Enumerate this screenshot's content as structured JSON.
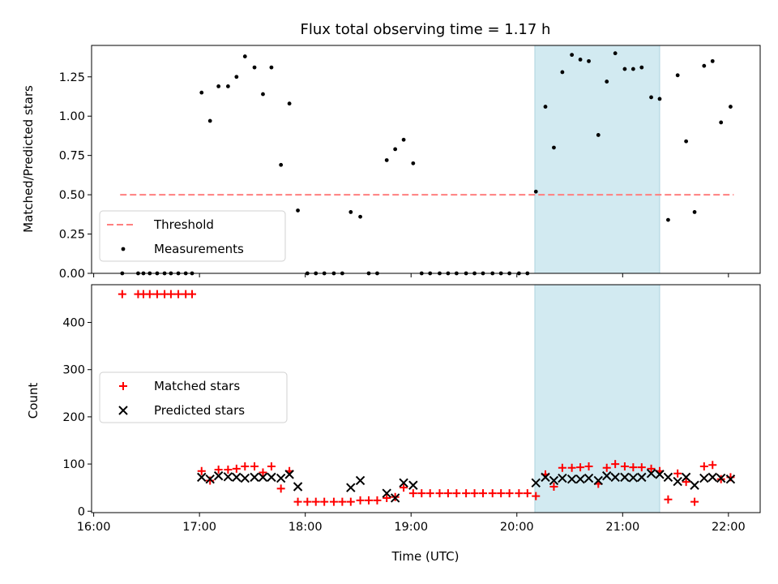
{
  "chart_data": [
    {
      "type": "scatter",
      "title": "Flux total observing time = 1.17 h",
      "xlabel": "",
      "ylabel": "Matched/Predicted stars",
      "xlim": [
        15.98,
        22.3
      ],
      "ylim": [
        0,
        1.45
      ],
      "yticks": [
        0.0,
        0.25,
        0.5,
        0.75,
        1.0,
        1.25
      ],
      "ytick_labels": [
        "0.00",
        "0.25",
        "0.50",
        "0.75",
        "1.00",
        "1.25"
      ],
      "highlight_span": {
        "x_start": 20.17,
        "x_end": 21.35,
        "color": "#add8e6"
      },
      "threshold": {
        "name": "Threshold",
        "y": 0.5,
        "x_start": 16.25,
        "x_end": 22.05,
        "color": "#ff7f7f"
      },
      "legend": [
        "Threshold",
        "Measurements"
      ],
      "legend_location": "lower-left",
      "series": [
        {
          "name": "Measurements",
          "color": "#000000",
          "marker": "dot",
          "points": [
            [
              16.27,
              0.0
            ],
            [
              16.42,
              0.0
            ],
            [
              16.47,
              0.0
            ],
            [
              16.53,
              0.0
            ],
            [
              16.6,
              0.0
            ],
            [
              16.67,
              0.0
            ],
            [
              16.73,
              0.0
            ],
            [
              16.8,
              0.0
            ],
            [
              16.87,
              0.0
            ],
            [
              16.93,
              0.0
            ],
            [
              17.02,
              1.15
            ],
            [
              17.1,
              0.97
            ],
            [
              17.18,
              1.19
            ],
            [
              17.27,
              1.19
            ],
            [
              17.35,
              1.25
            ],
            [
              17.43,
              1.38
            ],
            [
              17.52,
              1.31
            ],
            [
              17.6,
              1.14
            ],
            [
              17.68,
              1.31
            ],
            [
              17.77,
              0.69
            ],
            [
              17.85,
              1.08
            ],
            [
              17.93,
              0.4
            ],
            [
              18.02,
              0.0
            ],
            [
              18.1,
              0.0
            ],
            [
              18.18,
              0.0
            ],
            [
              18.27,
              0.0
            ],
            [
              18.35,
              0.0
            ],
            [
              18.43,
              0.39
            ],
            [
              18.52,
              0.36
            ],
            [
              18.6,
              0.0
            ],
            [
              18.68,
              0.0
            ],
            [
              18.77,
              0.72
            ],
            [
              18.85,
              0.79
            ],
            [
              18.93,
              0.85
            ],
            [
              19.02,
              0.7
            ],
            [
              19.1,
              0.0
            ],
            [
              19.18,
              0.0
            ],
            [
              19.27,
              0.0
            ],
            [
              19.35,
              0.0
            ],
            [
              19.43,
              0.0
            ],
            [
              19.52,
              0.0
            ],
            [
              19.6,
              0.0
            ],
            [
              19.68,
              0.0
            ],
            [
              19.77,
              0.0
            ],
            [
              19.85,
              0.0
            ],
            [
              19.93,
              0.0
            ],
            [
              20.02,
              0.0
            ],
            [
              20.1,
              0.0
            ],
            [
              20.18,
              0.52
            ],
            [
              20.27,
              1.06
            ],
            [
              20.35,
              0.8
            ],
            [
              20.43,
              1.28
            ],
            [
              20.52,
              1.39
            ],
            [
              20.6,
              1.36
            ],
            [
              20.68,
              1.35
            ],
            [
              20.77,
              0.88
            ],
            [
              20.85,
              1.22
            ],
            [
              20.93,
              1.4
            ],
            [
              21.02,
              1.3
            ],
            [
              21.1,
              1.3
            ],
            [
              21.18,
              1.31
            ],
            [
              21.27,
              1.12
            ],
            [
              21.35,
              1.11
            ],
            [
              21.43,
              0.34
            ],
            [
              21.52,
              1.26
            ],
            [
              21.6,
              0.84
            ],
            [
              21.68,
              0.39
            ],
            [
              21.77,
              1.32
            ],
            [
              21.85,
              1.35
            ],
            [
              21.93,
              0.96
            ],
            [
              22.02,
              1.06
            ]
          ]
        }
      ]
    },
    {
      "type": "scatter",
      "title": "",
      "xlabel": "Time (UTC)",
      "ylabel": "Count",
      "xlim": [
        15.98,
        22.3
      ],
      "ylim": [
        -3,
        480
      ],
      "xticks": [
        16,
        17,
        18,
        19,
        20,
        21,
        22
      ],
      "xtick_labels": [
        "16:00",
        "17:00",
        "18:00",
        "19:00",
        "20:00",
        "21:00",
        "22:00"
      ],
      "yticks": [
        0,
        100,
        200,
        300,
        400
      ],
      "ytick_labels": [
        "0",
        "100",
        "200",
        "300",
        "400"
      ],
      "highlight_span": {
        "x_start": 20.17,
        "x_end": 21.35,
        "color": "#add8e6"
      },
      "legend": [
        "Matched stars",
        "Predicted stars"
      ],
      "legend_location": "center-left",
      "series": [
        {
          "name": "Matched stars",
          "color": "#ff0000",
          "marker": "plus",
          "points": [
            [
              16.27,
              460
            ],
            [
              16.42,
              460
            ],
            [
              16.47,
              460
            ],
            [
              16.53,
              460
            ],
            [
              16.6,
              460
            ],
            [
              16.67,
              460
            ],
            [
              16.73,
              460
            ],
            [
              16.8,
              460
            ],
            [
              16.87,
              460
            ],
            [
              16.93,
              460
            ],
            [
              17.02,
              85
            ],
            [
              17.1,
              65
            ],
            [
              17.18,
              88
            ],
            [
              17.27,
              88
            ],
            [
              17.35,
              90
            ],
            [
              17.43,
              95
            ],
            [
              17.52,
              95
            ],
            [
              17.6,
              82
            ],
            [
              17.68,
              95
            ],
            [
              17.77,
              48
            ],
            [
              17.85,
              85
            ],
            [
              17.93,
              20
            ],
            [
              18.02,
              20
            ],
            [
              18.1,
              20
            ],
            [
              18.18,
              20
            ],
            [
              18.27,
              20
            ],
            [
              18.35,
              20
            ],
            [
              18.43,
              20
            ],
            [
              18.52,
              23
            ],
            [
              18.6,
              23
            ],
            [
              18.68,
              23
            ],
            [
              18.77,
              28
            ],
            [
              18.85,
              30
            ],
            [
              18.93,
              50
            ],
            [
              19.02,
              38
            ],
            [
              19.1,
              38
            ],
            [
              19.18,
              38
            ],
            [
              19.27,
              38
            ],
            [
              19.35,
              38
            ],
            [
              19.43,
              38
            ],
            [
              19.52,
              38
            ],
            [
              19.6,
              38
            ],
            [
              19.68,
              38
            ],
            [
              19.77,
              38
            ],
            [
              19.85,
              38
            ],
            [
              19.93,
              38
            ],
            [
              20.02,
              38
            ],
            [
              20.1,
              38
            ],
            [
              20.18,
              32
            ],
            [
              20.27,
              78
            ],
            [
              20.35,
              52
            ],
            [
              20.43,
              92
            ],
            [
              20.52,
              92
            ],
            [
              20.6,
              93
            ],
            [
              20.68,
              95
            ],
            [
              20.77,
              58
            ],
            [
              20.85,
              92
            ],
            [
              20.93,
              100
            ],
            [
              21.02,
              95
            ],
            [
              21.1,
              93
            ],
            [
              21.18,
              93
            ],
            [
              21.27,
              90
            ],
            [
              21.35,
              85
            ],
            [
              21.43,
              25
            ],
            [
              21.52,
              80
            ],
            [
              21.6,
              62
            ],
            [
              21.68,
              20
            ],
            [
              21.77,
              95
            ],
            [
              21.85,
              98
            ],
            [
              21.93,
              68
            ],
            [
              22.02,
              72
            ]
          ]
        },
        {
          "name": "Predicted stars",
          "color": "#000000",
          "marker": "x",
          "points": [
            [
              17.02,
              72
            ],
            [
              17.1,
              68
            ],
            [
              17.18,
              75
            ],
            [
              17.27,
              73
            ],
            [
              17.35,
              72
            ],
            [
              17.43,
              70
            ],
            [
              17.52,
              72
            ],
            [
              17.6,
              72
            ],
            [
              17.68,
              72
            ],
            [
              17.77,
              70
            ],
            [
              17.85,
              78
            ],
            [
              17.93,
              52
            ],
            [
              18.43,
              50
            ],
            [
              18.52,
              65
            ],
            [
              18.77,
              38
            ],
            [
              18.85,
              28
            ],
            [
              18.93,
              60
            ],
            [
              19.02,
              55
            ],
            [
              20.18,
              60
            ],
            [
              20.27,
              72
            ],
            [
              20.35,
              65
            ],
            [
              20.43,
              70
            ],
            [
              20.52,
              68
            ],
            [
              20.6,
              68
            ],
            [
              20.68,
              70
            ],
            [
              20.77,
              65
            ],
            [
              20.85,
              75
            ],
            [
              20.93,
              72
            ],
            [
              21.02,
              72
            ],
            [
              21.1,
              71
            ],
            [
              21.18,
              72
            ],
            [
              21.27,
              80
            ],
            [
              21.35,
              78
            ],
            [
              21.43,
              72
            ],
            [
              21.52,
              63
            ],
            [
              21.6,
              72
            ],
            [
              21.68,
              55
            ],
            [
              21.77,
              70
            ],
            [
              21.85,
              72
            ],
            [
              21.93,
              70
            ],
            [
              22.02,
              68
            ]
          ]
        }
      ]
    }
  ]
}
